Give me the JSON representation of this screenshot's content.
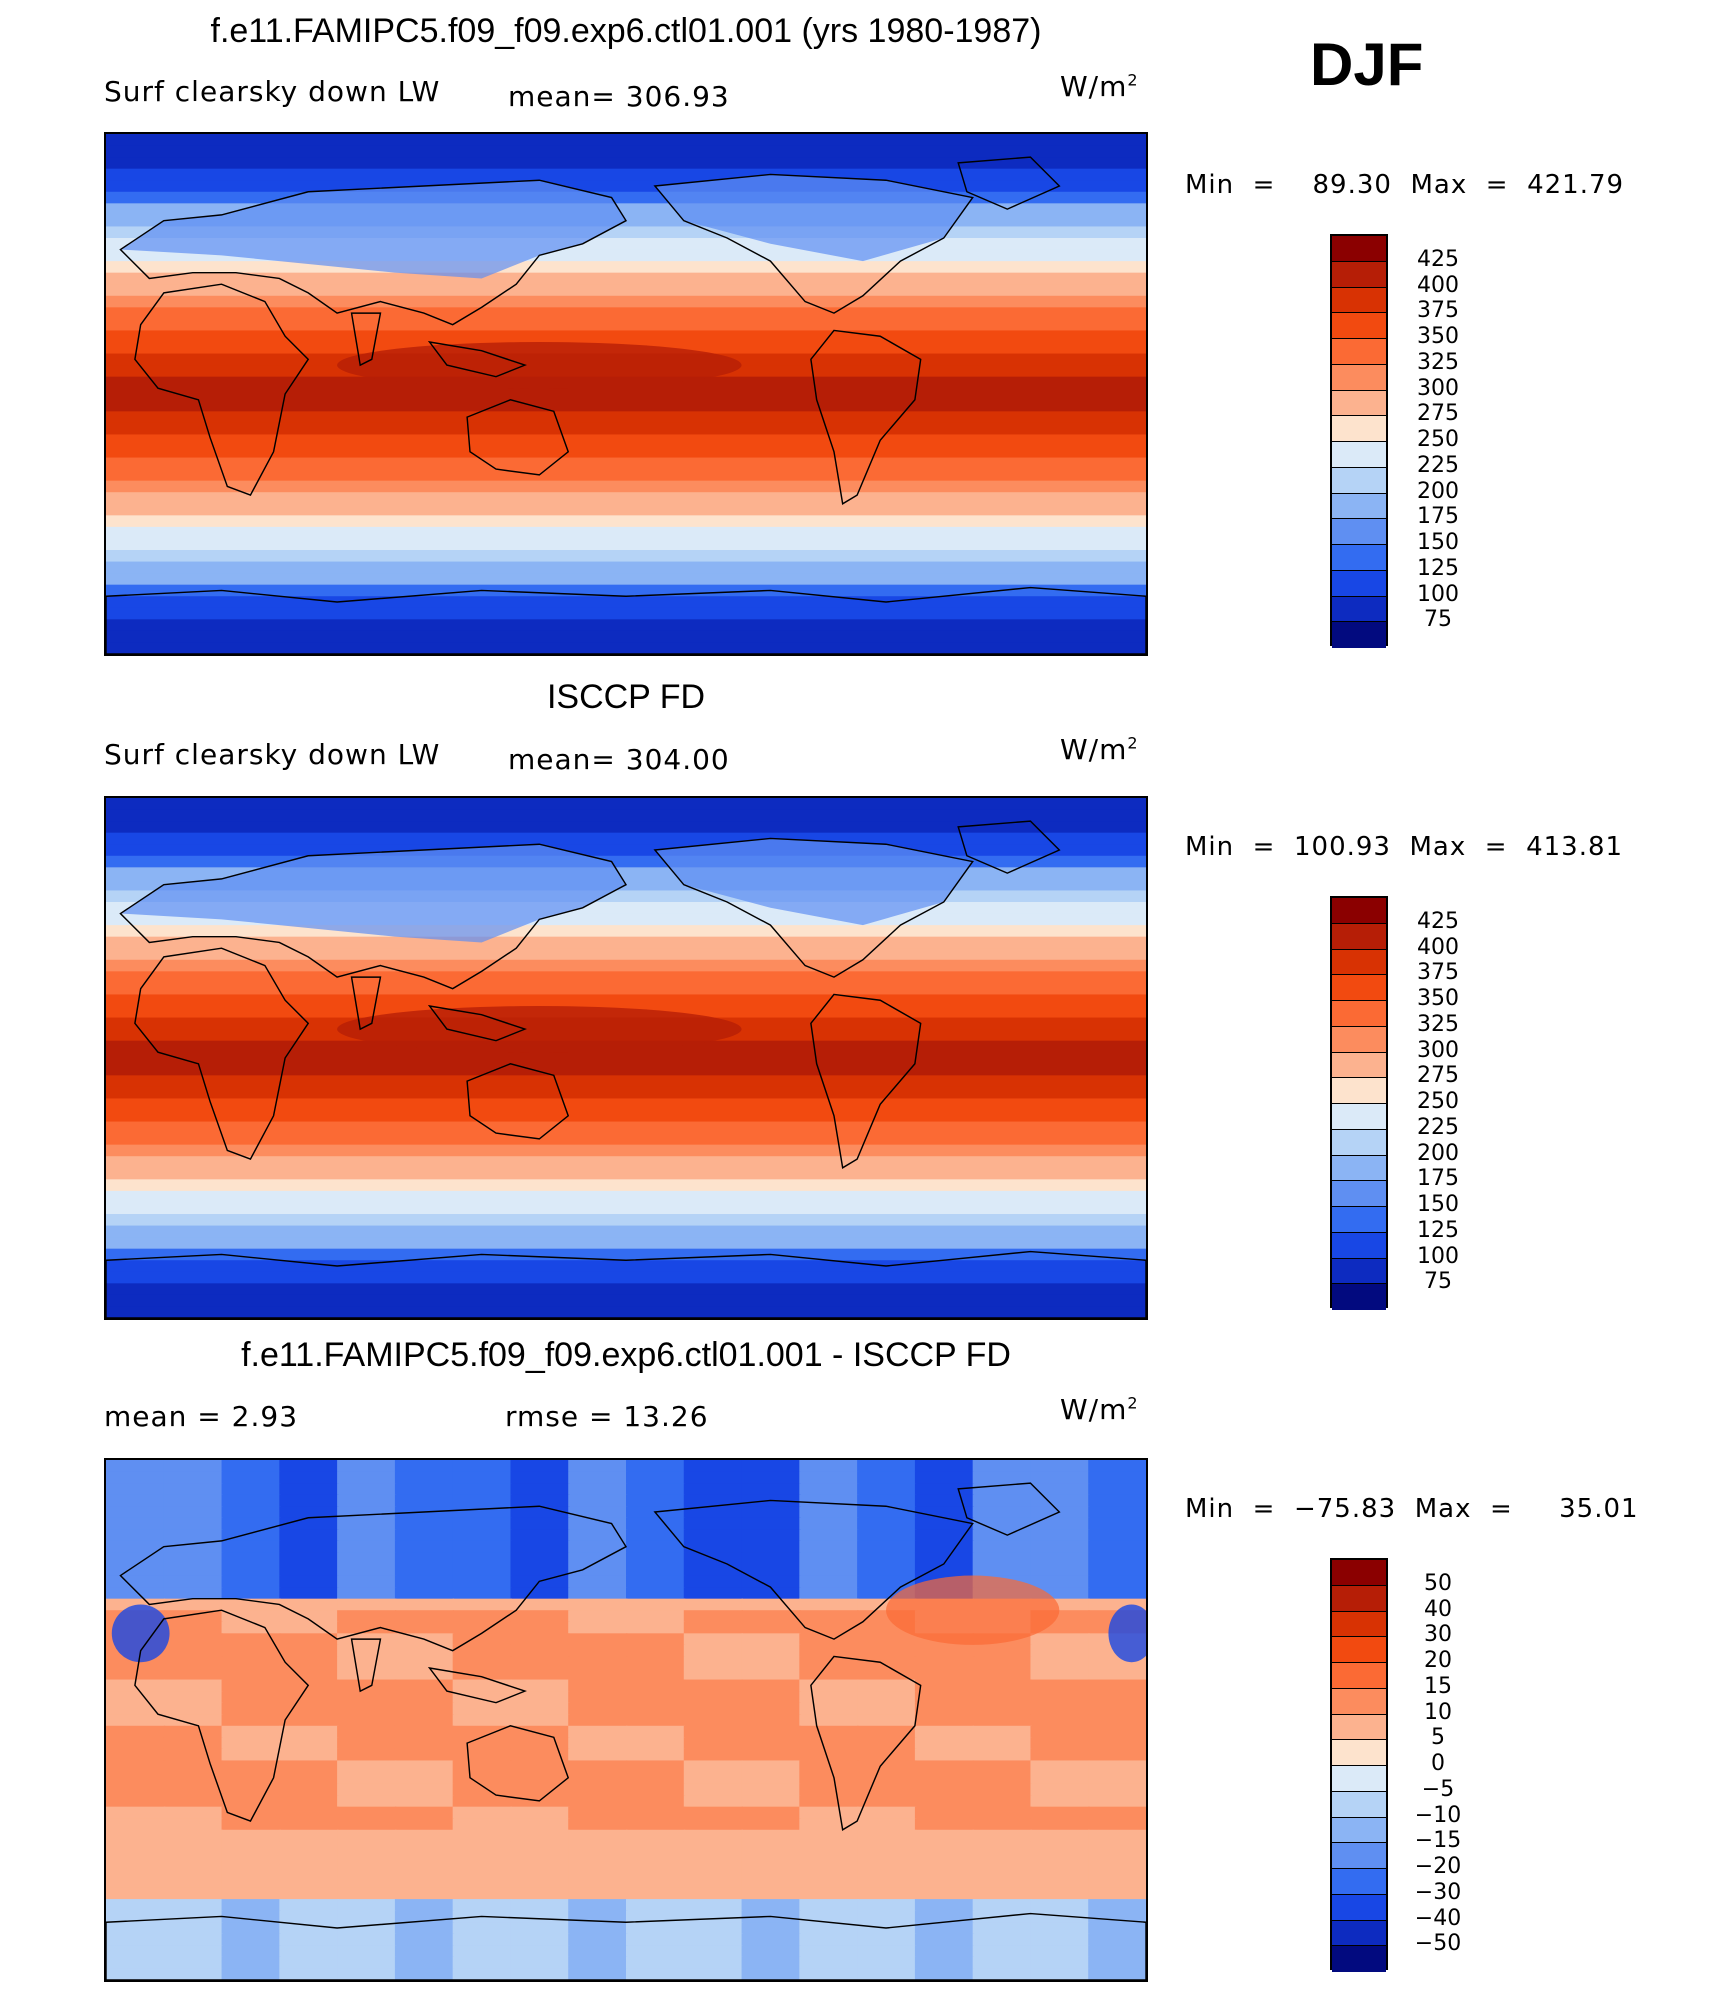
{
  "season": "DJF",
  "units": "W/m",
  "units_sup": "2",
  "colorbar_abs": {
    "levels": [
      "425",
      "400",
      "375",
      "350",
      "325",
      "300",
      "275",
      "250",
      "225",
      "200",
      "175",
      "150",
      "125",
      "100",
      "75"
    ],
    "colors": [
      "#8b0000",
      "#b61e06",
      "#d83203",
      "#f24a10",
      "#fb6a34",
      "#fc8c5e",
      "#fcb28f",
      "#fde3cd",
      "#dbeaf8",
      "#b5d3f6",
      "#8bb4f4",
      "#5f8ff2",
      "#336cf1",
      "#1847e5",
      "#0d2bc0",
      "#020a7f"
    ]
  },
  "colorbar_diff": {
    "levels": [
      "50",
      "40",
      "30",
      "20",
      "15",
      "10",
      "5",
      "0",
      "−5",
      "−10",
      "−15",
      "−20",
      "−30",
      "−40",
      "−50"
    ],
    "colors": [
      "#8b0000",
      "#b61e06",
      "#d83203",
      "#f24a10",
      "#fb6a34",
      "#fc8c5e",
      "#fcb28f",
      "#fde3cd",
      "#dbeaf8",
      "#b5d3f6",
      "#8bb4f4",
      "#5f8ff2",
      "#336cf1",
      "#1847e5",
      "#0d2bc0",
      "#020a7f"
    ]
  },
  "panels": [
    {
      "title": "f.e11.FAMIPC5.f09_f09.exp6.ctl01.001 (yrs 1980-1987)",
      "left_label": "Surf  clearsky  down  LW",
      "mid_label": "mean=  306.93",
      "minmax": "Min  =    89.30  Max  =  421.79",
      "field_type": "absolute"
    },
    {
      "title": "ISCCP FD",
      "left_label": "Surf  clearsky  down  LW",
      "mid_label": "mean=  304.00",
      "minmax": "Min  =  100.93  Max  =  413.81",
      "field_type": "absolute"
    },
    {
      "title": "f.e11.FAMIPC5.f09_f09.exp6.ctl01.001 - ISCCP FD",
      "left_label": "mean  =      2.93",
      "mid_label": "rmse  =     13.26",
      "minmax": "Min  =  −75.83  Max  =     35.01",
      "field_type": "difference"
    }
  ]
}
